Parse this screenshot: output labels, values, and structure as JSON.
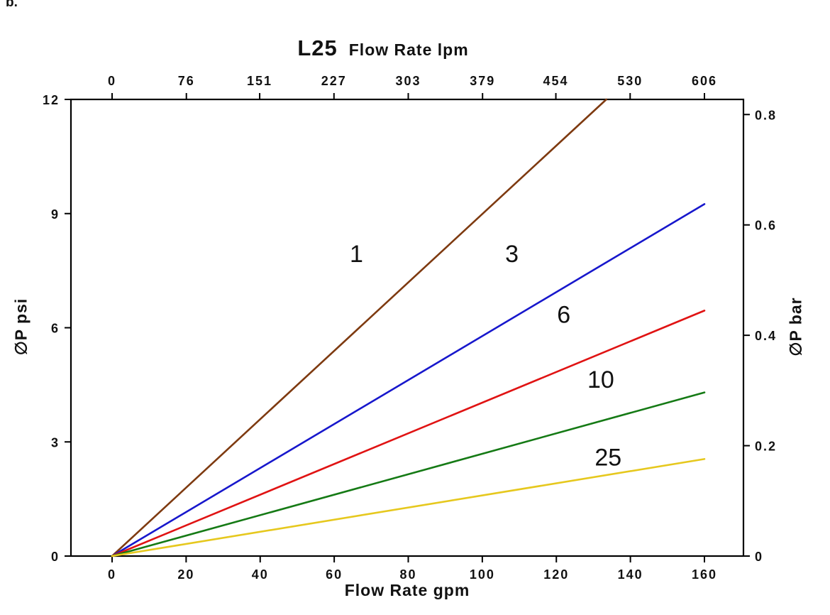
{
  "figure_label": "b.",
  "chart_data": {
    "type": "line",
    "title_model": "L25",
    "title_axis_top": "Flow Rate lpm",
    "xlabel_bottom": "Flow Rate gpm",
    "ylabel_left": "∅P psi",
    "ylabel_right": "∅P bar",
    "x_range_gpm": [
      0,
      160
    ],
    "y_range_psi": [
      0,
      12
    ],
    "x_ticks_gpm": [
      0,
      20,
      40,
      60,
      80,
      100,
      120,
      140,
      160
    ],
    "x_ticks_lpm": [
      0,
      76,
      151,
      227,
      303,
      379,
      454,
      530,
      606
    ],
    "y_ticks_psi": [
      0,
      3,
      6,
      9,
      12
    ],
    "y_ticks_bar": [
      "0",
      "0.2",
      "0.4",
      "0.6",
      "0.8"
    ],
    "bar_to_psi": 14.5038,
    "grid": false,
    "legend_position": "inline-labels",
    "series": [
      {
        "name": "1",
        "color": "#7e3a10",
        "points": [
          [
            0,
            0
          ],
          [
            133.5,
            12
          ]
        ]
      },
      {
        "name": "3",
        "color": "#1717cc",
        "points": [
          [
            0,
            0
          ],
          [
            160,
            9.25
          ]
        ]
      },
      {
        "name": "6",
        "color": "#e01313",
        "points": [
          [
            0,
            0
          ],
          [
            160,
            6.45
          ]
        ]
      },
      {
        "name": "10",
        "color": "#157a15",
        "points": [
          [
            0,
            0
          ],
          [
            160,
            4.3
          ]
        ]
      },
      {
        "name": "25",
        "color": "#e6c81e",
        "points": [
          [
            0,
            0
          ],
          [
            160,
            2.55
          ]
        ]
      }
    ],
    "series_labels": [
      {
        "text": "1",
        "x": 66,
        "y": 7.95
      },
      {
        "text": "3",
        "x": 108,
        "y": 7.95
      },
      {
        "text": "6",
        "x": 122,
        "y": 6.35
      },
      {
        "text": "10",
        "x": 132,
        "y": 4.65
      },
      {
        "text": "25",
        "x": 134,
        "y": 2.6
      }
    ]
  }
}
